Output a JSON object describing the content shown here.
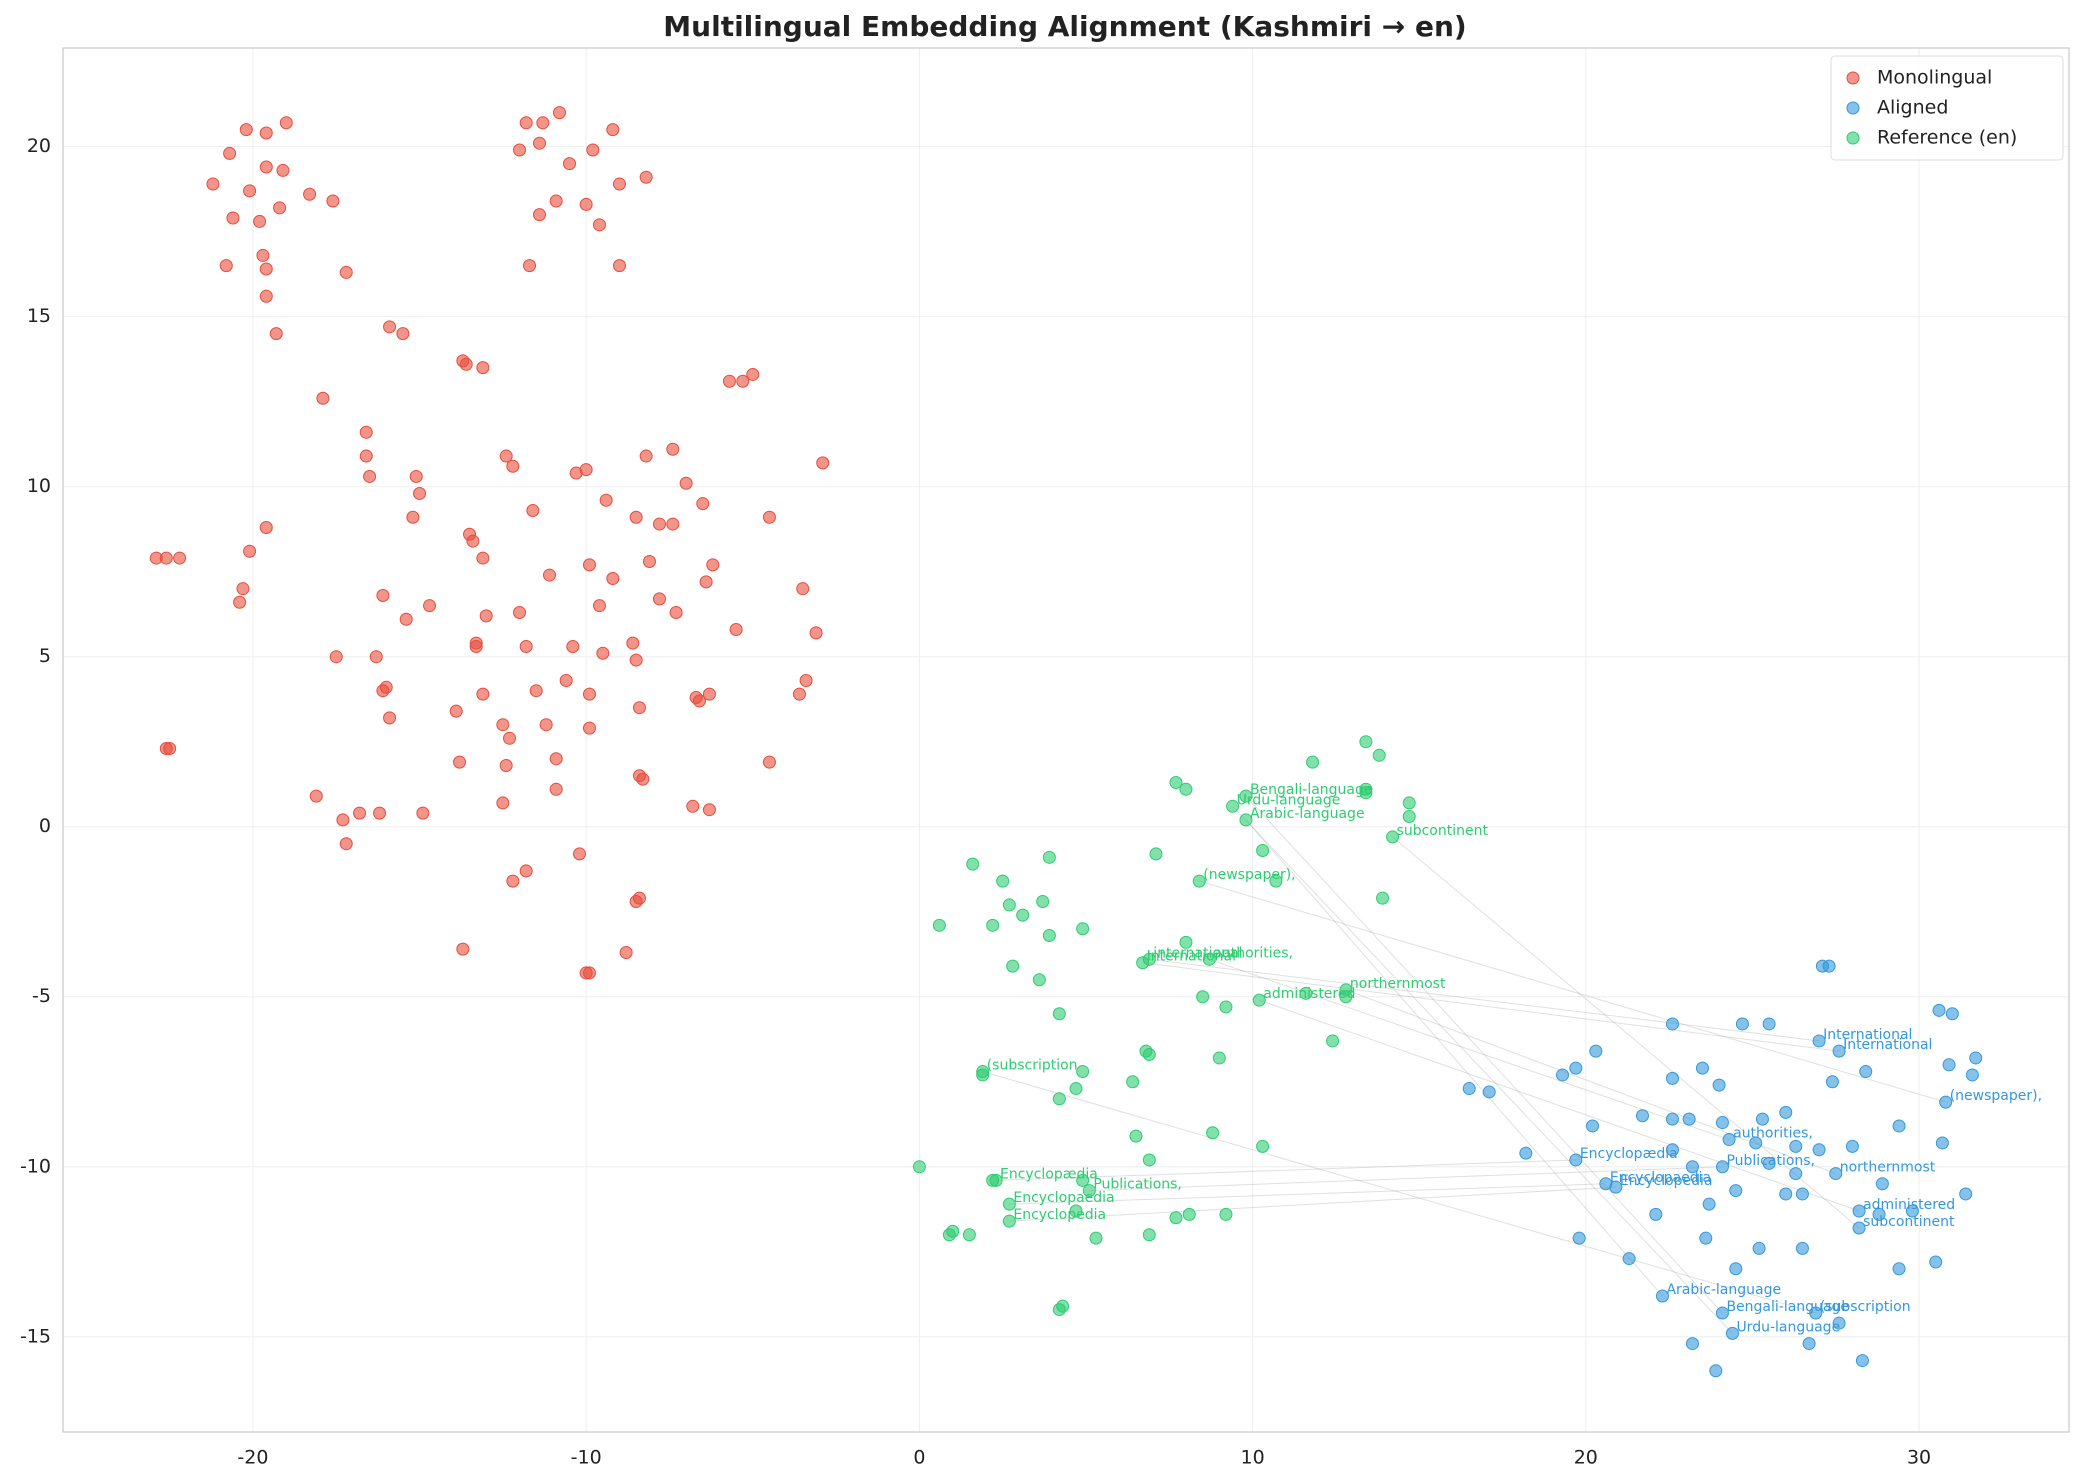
{
  "chart_data": {
    "type": "scatter",
    "title": "Multilingual Embedding Alignment (Kashmiri → en)",
    "xlim": [
      -25.7,
      34.5
    ],
    "ylim": [
      -17.8,
      22.9
    ],
    "xticks": [
      -20,
      -10,
      0,
      10,
      20,
      30
    ],
    "yticks": [
      -15,
      -10,
      -5,
      0,
      5,
      10,
      15,
      20
    ],
    "grid": true,
    "legend": "upper-right",
    "series": [
      {
        "name": "Monolingual",
        "color": "#e74c3c",
        "x": [
          -20.2,
          -19.6,
          -19.0,
          -20.7,
          -21.2,
          -19.6,
          -19.1,
          -20.1,
          -18.3,
          -19.2,
          -17.6,
          -19.8,
          -20.6,
          -20.8,
          -19.7,
          -19.6,
          -17.2,
          -19.6,
          -19.3,
          -17.9,
          -15.9,
          -15.5,
          -16.6,
          -16.6,
          -16.5,
          -15.1,
          -15.0,
          -15.2,
          -19.6,
          -20.1,
          -22.9,
          -22.6,
          -22.2,
          -20.3,
          -20.4,
          -16.1,
          -15.4,
          -14.7,
          -17.5,
          -16.3,
          -16.0,
          -16.1,
          -15.9,
          -18.1,
          -17.3,
          -16.8,
          -16.2,
          -14.9,
          -17.2,
          -22.6,
          -22.5,
          -11.8,
          -11.3,
          -10.8,
          -9.2,
          -12.0,
          -11.4,
          -10.5,
          -9.8,
          -8.2,
          -9.0,
          -10.9,
          -11.4,
          -10.0,
          -9.6,
          -9.0,
          -11.7,
          -13.7,
          -13.6,
          -13.1,
          -5.7,
          -5.3,
          -5.0,
          -2.9,
          -12.4,
          -12.2,
          -10.3,
          -10.0,
          -7.4,
          -8.2,
          -11.6,
          -9.4,
          -7.0,
          -6.5,
          -8.5,
          -7.8,
          -7.4,
          -4.5,
          -13.5,
          -13.4,
          -13.1,
          -9.9,
          -11.1,
          -9.2,
          -9.6,
          -8.1,
          -6.2,
          -6.4,
          -3.5,
          -7.8,
          -7.3,
          -13.0,
          -12.0,
          -5.5,
          -3.1,
          -13.3,
          -13.3,
          -11.8,
          -10.4,
          -8.6,
          -8.5,
          -9.5,
          -10.6,
          -11.5,
          -13.1,
          -9.9,
          -6.7,
          -6.6,
          -6.3,
          -3.6,
          -3.4,
          -13.9,
          -12.5,
          -12.3,
          -11.2,
          -9.9,
          -8.4,
          -10.9,
          -13.8,
          -12.4,
          -4.5,
          -8.4,
          -8.3,
          -10.9,
          -12.5,
          -6.8,
          -6.3,
          -10.2,
          -11.8,
          -12.2,
          -8.4,
          -8.5,
          -13.7,
          -8.8,
          -10.0,
          -9.9
        ],
        "y": [
          20.5,
          20.4,
          20.7,
          19.8,
          18.9,
          19.4,
          19.3,
          18.7,
          18.6,
          18.2,
          18.4,
          17.8,
          17.9,
          16.5,
          16.8,
          16.4,
          16.3,
          15.6,
          14.5,
          12.6,
          14.7,
          14.5,
          11.6,
          10.9,
          10.3,
          10.3,
          9.8,
          9.1,
          8.8,
          8.1,
          7.9,
          7.9,
          7.9,
          7.0,
          6.6,
          6.8,
          6.1,
          6.5,
          5.0,
          5.0,
          4.1,
          4.0,
          3.2,
          0.9,
          0.2,
          0.4,
          0.4,
          0.4,
          -0.5,
          2.3,
          2.3,
          20.7,
          20.7,
          21.0,
          20.5,
          19.9,
          20.1,
          19.5,
          19.9,
          19.1,
          18.9,
          18.4,
          18.0,
          18.3,
          17.7,
          16.5,
          16.5,
          13.7,
          13.6,
          13.5,
          13.1,
          13.1,
          13.3,
          10.7,
          10.9,
          10.6,
          10.4,
          10.5,
          11.1,
          10.9,
          9.3,
          9.6,
          10.1,
          9.5,
          9.1,
          8.9,
          8.9,
          9.1,
          8.6,
          8.4,
          7.9,
          7.7,
          7.4,
          7.3,
          6.5,
          7.8,
          7.7,
          7.2,
          7.0,
          6.7,
          6.3,
          6.2,
          6.3,
          5.8,
          5.7,
          5.4,
          5.3,
          5.3,
          5.3,
          5.4,
          4.9,
          5.1,
          4.3,
          4.0,
          3.9,
          3.9,
          3.8,
          3.7,
          3.9,
          3.9,
          4.3,
          3.4,
          3.0,
          2.6,
          3.0,
          2.9,
          3.5,
          2.0,
          1.9,
          1.8,
          1.9,
          1.5,
          1.4,
          1.1,
          0.7,
          0.6,
          0.5,
          -0.8,
          -1.3,
          -1.6,
          -2.1,
          -2.2,
          -3.6,
          -3.7,
          -4.3,
          -4.3
        ]
      },
      {
        "name": "Aligned",
        "color": "#3498db",
        "x": [
          27.1,
          27.3,
          30.6,
          31.0,
          22.6,
          24.7,
          25.5,
          27.0,
          27.6,
          31.7,
          30.9,
          31.6,
          20.3,
          19.7,
          19.3,
          22.6,
          23.5,
          24.0,
          27.4,
          28.4,
          30.8,
          16.5,
          17.1,
          21.7,
          22.6,
          23.1,
          24.1,
          25.3,
          26.0,
          29.4,
          20.2,
          24.3,
          25.1,
          26.3,
          27.0,
          28.0,
          30.7,
          22.6,
          18.2,
          19.7,
          23.2,
          24.1,
          25.5,
          26.3,
          27.5,
          28.9,
          20.6,
          20.9,
          24.5,
          26.0,
          26.5,
          22.1,
          23.7,
          28.2,
          28.8,
          29.8,
          31.4,
          28.2,
          19.8,
          23.6,
          25.2,
          26.5,
          29.4,
          30.5,
          24.5,
          21.3,
          22.3,
          24.1,
          26.9,
          27.6,
          24.4,
          23.2,
          26.7,
          28.3,
          23.9
        ],
        "y": [
          -4.1,
          -4.1,
          -5.4,
          -5.5,
          -5.8,
          -5.8,
          -5.8,
          -6.3,
          -6.6,
          -6.8,
          -7.0,
          -7.3,
          -6.6,
          -7.1,
          -7.3,
          -7.4,
          -7.1,
          -7.6,
          -7.5,
          -7.2,
          -8.1,
          -7.7,
          -7.8,
          -8.5,
          -8.6,
          -8.6,
          -8.7,
          -8.6,
          -8.4,
          -8.8,
          -8.8,
          -9.2,
          -9.3,
          -9.4,
          -9.5,
          -9.4,
          -9.3,
          -9.5,
          -9.6,
          -9.8,
          -10.0,
          -10.0,
          -9.9,
          -10.2,
          -10.2,
          -10.5,
          -10.5,
          -10.6,
          -10.7,
          -10.8,
          -10.8,
          -11.4,
          -11.1,
          -11.3,
          -11.4,
          -11.3,
          -10.8,
          -11.8,
          -12.1,
          -12.1,
          -12.4,
          -12.4,
          -13.0,
          -12.8,
          -13.0,
          -12.7,
          -13.8,
          -14.3,
          -14.3,
          -14.6,
          -14.9,
          -15.2,
          -15.2,
          -15.7,
          -16.0
        ]
      },
      {
        "name": "Reference (en)",
        "color": "#2ecc71",
        "x": [
          13.4,
          13.8,
          11.8,
          7.7,
          8.0,
          9.4,
          9.8,
          13.4,
          13.4,
          14.7,
          14.7,
          9.8,
          14.2,
          10.3,
          7.1,
          3.9,
          1.6,
          2.5,
          8.4,
          10.7,
          13.9,
          0.6,
          2.2,
          2.7,
          3.1,
          3.7,
          4.9,
          3.9,
          8.0,
          2.8,
          6.7,
          6.9,
          8.7,
          3.6,
          8.5,
          9.2,
          10.2,
          11.6,
          12.8,
          12.8,
          4.2,
          12.4,
          6.8,
          6.9,
          9.0,
          1.9,
          1.9,
          4.9,
          4.7,
          6.4,
          4.2,
          6.5,
          8.8,
          10.3,
          6.9,
          0.0,
          2.2,
          2.3,
          4.9,
          5.1,
          2.7,
          4.7,
          2.7,
          8.1,
          7.7,
          9.2,
          1.0,
          0.9,
          1.5,
          5.3,
          6.9,
          4.3,
          4.2
        ],
        "y": [
          2.5,
          2.1,
          1.9,
          1.3,
          1.1,
          0.6,
          0.9,
          1.1,
          1.0,
          0.7,
          0.3,
          0.2,
          -0.3,
          -0.7,
          -0.8,
          -0.9,
          -1.1,
          -1.6,
          -1.6,
          -1.6,
          -2.1,
          -2.9,
          -2.9,
          -2.3,
          -2.6,
          -2.2,
          -3.0,
          -3.2,
          -3.4,
          -4.1,
          -4.0,
          -3.9,
          -3.9,
          -4.5,
          -5.0,
          -5.3,
          -5.1,
          -4.9,
          -4.8,
          -5.0,
          -5.5,
          -6.3,
          -6.6,
          -6.7,
          -6.8,
          -7.2,
          -7.3,
          -7.2,
          -7.7,
          -7.5,
          -8.0,
          -9.1,
          -9.0,
          -9.4,
          -9.8,
          -10.0,
          -10.4,
          -10.4,
          -10.4,
          -10.7,
          -11.1,
          -11.3,
          -11.6,
          -11.4,
          -11.5,
          -11.4,
          -11.9,
          -12.0,
          -12.0,
          -12.1,
          -12.0,
          -14.1,
          -14.2
        ]
      }
    ],
    "pairs": [
      {
        "ref_label": "Bengali-language",
        "aligned_label": "Bengali-language",
        "ref": [
          9.8,
          0.9
        ],
        "aligned": [
          24.1,
          -14.3
        ]
      },
      {
        "ref_label": "Urdu-language",
        "aligned_label": "Urdu-language",
        "ref": [
          9.4,
          0.6
        ],
        "aligned": [
          24.4,
          -14.9
        ]
      },
      {
        "ref_label": "Arabic-language",
        "aligned_label": "Arabic-language",
        "ref": [
          9.8,
          0.2
        ],
        "aligned": [
          22.3,
          -13.8
        ]
      },
      {
        "ref_label": "subcontinent",
        "aligned_label": "subcontinent",
        "ref": [
          14.2,
          -0.3
        ],
        "aligned": [
          28.2,
          -11.8
        ]
      },
      {
        "ref_label": "(newspaper),",
        "aligned_label": "(newspaper),",
        "ref": [
          8.4,
          -1.6
        ],
        "aligned": [
          30.8,
          -8.1
        ]
      },
      {
        "ref_label": "international",
        "aligned_label": "International",
        "ref": [
          6.9,
          -3.9
        ],
        "aligned": [
          27.0,
          -6.3
        ]
      },
      {
        "ref_label": "International",
        "aligned_label": "International",
        "ref": [
          6.7,
          -4.0
        ],
        "aligned": [
          27.6,
          -6.6
        ]
      },
      {
        "ref_label": "authorities,",
        "aligned_label": "authorities,",
        "ref": [
          8.7,
          -3.9
        ],
        "aligned": [
          24.3,
          -9.2
        ]
      },
      {
        "ref_label": "northernmost",
        "aligned_label": "northernmost",
        "ref": [
          12.8,
          -4.8
        ],
        "aligned": [
          27.5,
          -10.2
        ]
      },
      {
        "ref_label": "administered",
        "aligned_label": "administered",
        "ref": [
          10.2,
          -5.1
        ],
        "aligned": [
          28.2,
          -11.3
        ]
      },
      {
        "ref_label": "(subscription",
        "aligned_label": "(subscription",
        "ref": [
          1.9,
          -7.2
        ],
        "aligned": [
          26.9,
          -14.3
        ]
      },
      {
        "ref_label": "Encyclopædia",
        "aligned_label": "Encyclopædia",
        "ref": [
          2.3,
          -10.4
        ],
        "aligned": [
          19.7,
          -9.8
        ]
      },
      {
        "ref_label": "Publications,",
        "aligned_label": "Publications,",
        "ref": [
          5.1,
          -10.7
        ],
        "aligned": [
          24.1,
          -10.0
        ]
      },
      {
        "ref_label": "Encyclopaedia",
        "aligned_label": "Encyclopaedia",
        "ref": [
          2.7,
          -11.1
        ],
        "aligned": [
          20.6,
          -10.5
        ]
      },
      {
        "ref_label": "Encyclopedia",
        "aligned_label": "Encyclopedia",
        "ref": [
          2.7,
          -11.6
        ],
        "aligned": [
          20.9,
          -10.6
        ]
      }
    ]
  }
}
